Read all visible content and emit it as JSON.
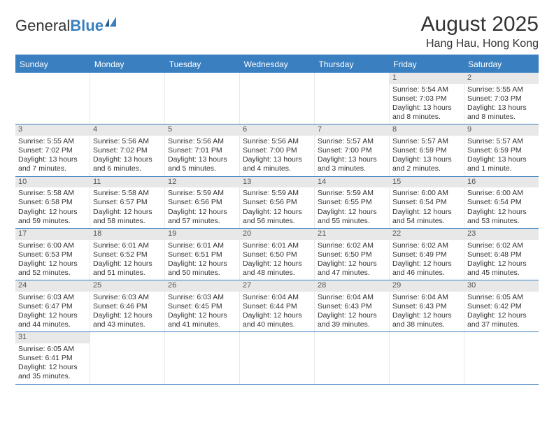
{
  "logo": {
    "word1": "General",
    "word2": "Blue"
  },
  "title": "August 2025",
  "location": "Hang Hau, Hong Kong",
  "colors": {
    "header_bg": "#3a7fbf",
    "daynum_bg": "#e8e8e8",
    "text": "#333333",
    "border": "#3a7fbf"
  },
  "weekdays": [
    "Sunday",
    "Monday",
    "Tuesday",
    "Wednesday",
    "Thursday",
    "Friday",
    "Saturday"
  ],
  "weeks": [
    [
      null,
      null,
      null,
      null,
      null,
      {
        "n": "1",
        "sr": "Sunrise: 5:54 AM",
        "ss": "Sunset: 7:03 PM",
        "dl": "Daylight: 13 hours and 8 minutes."
      },
      {
        "n": "2",
        "sr": "Sunrise: 5:55 AM",
        "ss": "Sunset: 7:03 PM",
        "dl": "Daylight: 13 hours and 8 minutes."
      }
    ],
    [
      {
        "n": "3",
        "sr": "Sunrise: 5:55 AM",
        "ss": "Sunset: 7:02 PM",
        "dl": "Daylight: 13 hours and 7 minutes."
      },
      {
        "n": "4",
        "sr": "Sunrise: 5:56 AM",
        "ss": "Sunset: 7:02 PM",
        "dl": "Daylight: 13 hours and 6 minutes."
      },
      {
        "n": "5",
        "sr": "Sunrise: 5:56 AM",
        "ss": "Sunset: 7:01 PM",
        "dl": "Daylight: 13 hours and 5 minutes."
      },
      {
        "n": "6",
        "sr": "Sunrise: 5:56 AM",
        "ss": "Sunset: 7:00 PM",
        "dl": "Daylight: 13 hours and 4 minutes."
      },
      {
        "n": "7",
        "sr": "Sunrise: 5:57 AM",
        "ss": "Sunset: 7:00 PM",
        "dl": "Daylight: 13 hours and 3 minutes."
      },
      {
        "n": "8",
        "sr": "Sunrise: 5:57 AM",
        "ss": "Sunset: 6:59 PM",
        "dl": "Daylight: 13 hours and 2 minutes."
      },
      {
        "n": "9",
        "sr": "Sunrise: 5:57 AM",
        "ss": "Sunset: 6:59 PM",
        "dl": "Daylight: 13 hours and 1 minute."
      }
    ],
    [
      {
        "n": "10",
        "sr": "Sunrise: 5:58 AM",
        "ss": "Sunset: 6:58 PM",
        "dl": "Daylight: 12 hours and 59 minutes."
      },
      {
        "n": "11",
        "sr": "Sunrise: 5:58 AM",
        "ss": "Sunset: 6:57 PM",
        "dl": "Daylight: 12 hours and 58 minutes."
      },
      {
        "n": "12",
        "sr": "Sunrise: 5:59 AM",
        "ss": "Sunset: 6:56 PM",
        "dl": "Daylight: 12 hours and 57 minutes."
      },
      {
        "n": "13",
        "sr": "Sunrise: 5:59 AM",
        "ss": "Sunset: 6:56 PM",
        "dl": "Daylight: 12 hours and 56 minutes."
      },
      {
        "n": "14",
        "sr": "Sunrise: 5:59 AM",
        "ss": "Sunset: 6:55 PM",
        "dl": "Daylight: 12 hours and 55 minutes."
      },
      {
        "n": "15",
        "sr": "Sunrise: 6:00 AM",
        "ss": "Sunset: 6:54 PM",
        "dl": "Daylight: 12 hours and 54 minutes."
      },
      {
        "n": "16",
        "sr": "Sunrise: 6:00 AM",
        "ss": "Sunset: 6:54 PM",
        "dl": "Daylight: 12 hours and 53 minutes."
      }
    ],
    [
      {
        "n": "17",
        "sr": "Sunrise: 6:00 AM",
        "ss": "Sunset: 6:53 PM",
        "dl": "Daylight: 12 hours and 52 minutes."
      },
      {
        "n": "18",
        "sr": "Sunrise: 6:01 AM",
        "ss": "Sunset: 6:52 PM",
        "dl": "Daylight: 12 hours and 51 minutes."
      },
      {
        "n": "19",
        "sr": "Sunrise: 6:01 AM",
        "ss": "Sunset: 6:51 PM",
        "dl": "Daylight: 12 hours and 50 minutes."
      },
      {
        "n": "20",
        "sr": "Sunrise: 6:01 AM",
        "ss": "Sunset: 6:50 PM",
        "dl": "Daylight: 12 hours and 48 minutes."
      },
      {
        "n": "21",
        "sr": "Sunrise: 6:02 AM",
        "ss": "Sunset: 6:50 PM",
        "dl": "Daylight: 12 hours and 47 minutes."
      },
      {
        "n": "22",
        "sr": "Sunrise: 6:02 AM",
        "ss": "Sunset: 6:49 PM",
        "dl": "Daylight: 12 hours and 46 minutes."
      },
      {
        "n": "23",
        "sr": "Sunrise: 6:02 AM",
        "ss": "Sunset: 6:48 PM",
        "dl": "Daylight: 12 hours and 45 minutes."
      }
    ],
    [
      {
        "n": "24",
        "sr": "Sunrise: 6:03 AM",
        "ss": "Sunset: 6:47 PM",
        "dl": "Daylight: 12 hours and 44 minutes."
      },
      {
        "n": "25",
        "sr": "Sunrise: 6:03 AM",
        "ss": "Sunset: 6:46 PM",
        "dl": "Daylight: 12 hours and 43 minutes."
      },
      {
        "n": "26",
        "sr": "Sunrise: 6:03 AM",
        "ss": "Sunset: 6:45 PM",
        "dl": "Daylight: 12 hours and 41 minutes."
      },
      {
        "n": "27",
        "sr": "Sunrise: 6:04 AM",
        "ss": "Sunset: 6:44 PM",
        "dl": "Daylight: 12 hours and 40 minutes."
      },
      {
        "n": "28",
        "sr": "Sunrise: 6:04 AM",
        "ss": "Sunset: 6:43 PM",
        "dl": "Daylight: 12 hours and 39 minutes."
      },
      {
        "n": "29",
        "sr": "Sunrise: 6:04 AM",
        "ss": "Sunset: 6:43 PM",
        "dl": "Daylight: 12 hours and 38 minutes."
      },
      {
        "n": "30",
        "sr": "Sunrise: 6:05 AM",
        "ss": "Sunset: 6:42 PM",
        "dl": "Daylight: 12 hours and 37 minutes."
      }
    ],
    [
      {
        "n": "31",
        "sr": "Sunrise: 6:05 AM",
        "ss": "Sunset: 6:41 PM",
        "dl": "Daylight: 12 hours and 35 minutes."
      },
      null,
      null,
      null,
      null,
      null,
      null
    ]
  ]
}
